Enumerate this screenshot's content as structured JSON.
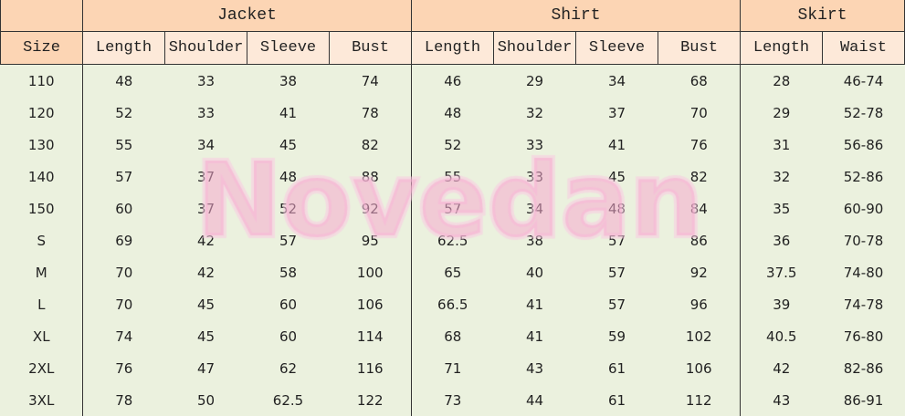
{
  "groups": {
    "jacket": "Jacket",
    "shirt": "Shirt",
    "skirt": "Skirt"
  },
  "columns": [
    "Size",
    "Length",
    "Shoulder",
    "Sleeve",
    "Bust",
    "Length",
    "Shoulder",
    "Sleeve",
    "Bust",
    "Length",
    "Waist"
  ],
  "rows": [
    [
      "110",
      "48",
      "33",
      "38",
      "74",
      "46",
      "29",
      "34",
      "68",
      "28",
      "46-74"
    ],
    [
      "120",
      "52",
      "33",
      "41",
      "78",
      "48",
      "32",
      "37",
      "70",
      "29",
      "52-78"
    ],
    [
      "130",
      "55",
      "34",
      "45",
      "82",
      "52",
      "33",
      "41",
      "76",
      "31",
      "56-86"
    ],
    [
      "140",
      "57",
      "37",
      "48",
      "88",
      "55",
      "33",
      "45",
      "82",
      "32",
      "52-86"
    ],
    [
      "150",
      "60",
      "37",
      "52",
      "92",
      "57",
      "34",
      "48",
      "84",
      "35",
      "60-90"
    ],
    [
      "S",
      "69",
      "42",
      "57",
      "95",
      "62.5",
      "38",
      "57",
      "86",
      "36",
      "70-78"
    ],
    [
      "M",
      "70",
      "42",
      "58",
      "100",
      "65",
      "40",
      "57",
      "92",
      "37.5",
      "74-80"
    ],
    [
      "L",
      "70",
      "45",
      "60",
      "106",
      "66.5",
      "41",
      "57",
      "96",
      "39",
      "74-78"
    ],
    [
      "XL",
      "74",
      "45",
      "60",
      "114",
      "68",
      "41",
      "59",
      "102",
      "40.5",
      "76-80"
    ],
    [
      "2XL",
      "76",
      "47",
      "62",
      "116",
      "71",
      "43",
      "61",
      "106",
      "42",
      "82-86"
    ],
    [
      "3XL",
      "78",
      "50",
      "62.5",
      "122",
      "73",
      "44",
      "61",
      "112",
      "43",
      "86-91"
    ]
  ],
  "watermark": "Novedan",
  "colors": {
    "header": "#fcd5b4",
    "subheader": "#fde9d9",
    "body": "#ebf1de",
    "watermark": "#f6aacd"
  }
}
